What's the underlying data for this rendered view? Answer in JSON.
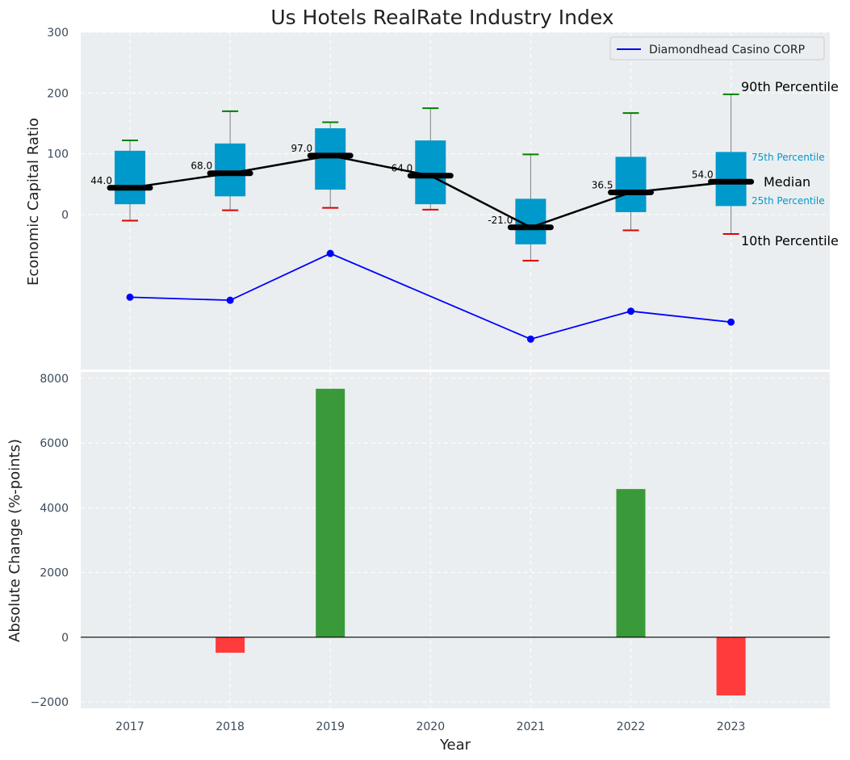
{
  "chart_data": [
    {
      "type": "box-line",
      "title": "Us Hotels RealRate Industry Index",
      "xlabel": "",
      "ylabel": "Economic Capital Ratio",
      "ylim": [
        -255,
        300
      ],
      "yticks": [
        0,
        100,
        200,
        300
      ],
      "grid": true,
      "categories": [
        "2017",
        "2018",
        "2019",
        "2020",
        "2021",
        "2022",
        "2023"
      ],
      "boxes": [
        {
          "year": "2017",
          "p10": -10,
          "q1": 17,
          "median": 44.0,
          "q3": 105,
          "p90": 122,
          "median_label": "44.0"
        },
        {
          "year": "2018",
          "p10": 7,
          "q1": 30,
          "median": 68.0,
          "q3": 117,
          "p90": 170,
          "median_label": "68.0"
        },
        {
          "year": "2019",
          "p10": 11,
          "q1": 41,
          "median": 97.0,
          "q3": 142,
          "p90": 152,
          "median_label": "97.0"
        },
        {
          "year": "2020",
          "p10": 8,
          "q1": 17,
          "median": 64.0,
          "q3": 122,
          "p90": 175,
          "median_label": "64.0"
        },
        {
          "year": "2021",
          "p10": -76,
          "q1": -49,
          "median": -21.0,
          "q3": 26,
          "p90": 99,
          "median_label": "-21.0"
        },
        {
          "year": "2022",
          "p10": -26,
          "q1": 4,
          "median": 36.5,
          "q3": 95,
          "p90": 167,
          "median_label": "36.5"
        },
        {
          "year": "2023",
          "p10": -32,
          "q1": 14,
          "median": 54.0,
          "q3": 103,
          "p90": 198,
          "median_label": "54.0"
        }
      ],
      "company_series": {
        "name": "Diamondhead Casino CORP",
        "color": "#0000ff",
        "values": [
          -136,
          -141,
          -64,
          null,
          -205,
          -159,
          -177
        ]
      },
      "percentile_annotations": {
        "p90": "90th Percentile",
        "q3": "75th Percentile",
        "median": "Median",
        "q1": "25th Percentile",
        "p10": "10th Percentile"
      },
      "legend": {
        "entry": "Diamondhead Casino CORP",
        "placement": "top-right"
      },
      "colors": {
        "box": "#0099cc",
        "median_line": "#000000",
        "p90_cap": "#008000",
        "p10_cap": "#dd0000",
        "whisker": "#808080"
      }
    },
    {
      "type": "bar",
      "xlabel": "Year",
      "ylabel": "Absolute Change (%-points)",
      "categories": [
        "2017",
        "2018",
        "2019",
        "2020",
        "2021",
        "2022",
        "2023"
      ],
      "values": [
        0,
        -480,
        7680,
        0,
        0,
        4580,
        -1800
      ],
      "ylim": [
        -2200,
        8200
      ],
      "yticks": [
        -2000,
        0,
        2000,
        4000,
        6000,
        8000
      ],
      "ytick_labels": [
        "−2000",
        "0",
        "2000",
        "4000",
        "6000",
        "8000"
      ],
      "grid": true,
      "colors": {
        "positive": "#3a9a3a",
        "negative": "#ff3b3b"
      }
    }
  ]
}
